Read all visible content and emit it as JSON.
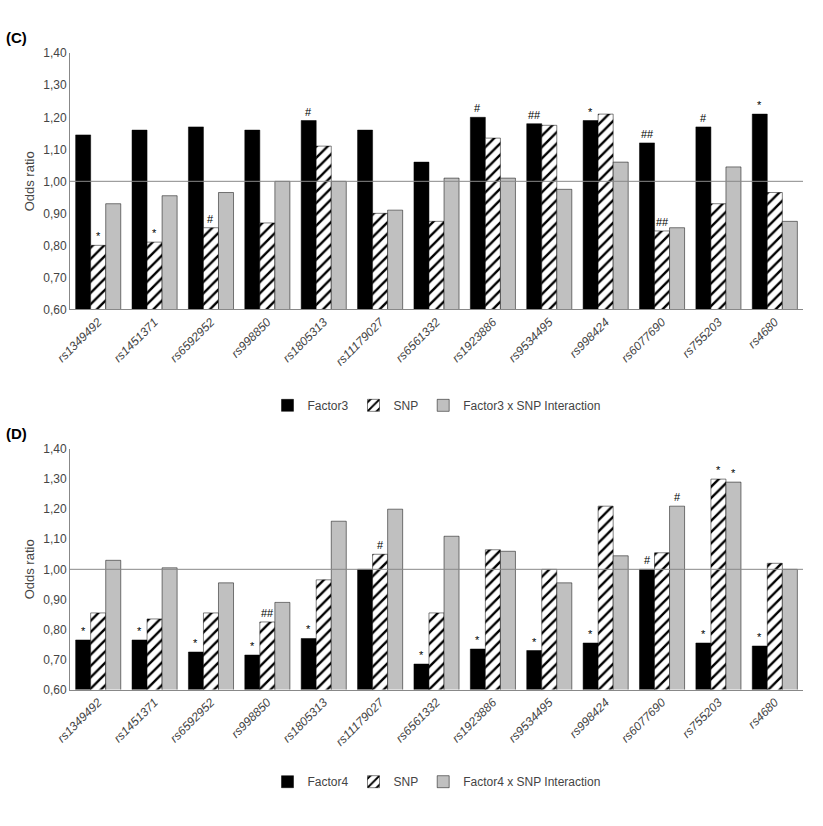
{
  "chart_data": [
    {
      "type": "bar",
      "title": "(C)",
      "categories": [
        "rs1349492",
        "rs1451371",
        "rs6592952",
        "rs998850",
        "rs1805313",
        "rs11179027",
        "rs6561332",
        "rs1923886",
        "rs9534495",
        "rs998424",
        "rs6077690",
        "rs755203",
        "rs4680"
      ],
      "series": [
        {
          "name": "Factor3",
          "color": "black",
          "values": [
            1.145,
            1.16,
            1.17,
            1.16,
            1.19,
            1.16,
            1.06,
            1.2,
            1.18,
            1.19,
            1.12,
            1.17,
            1.21
          ]
        },
        {
          "name": "SNP",
          "color": "white",
          "marker": "hatched",
          "values": [
            0.8,
            0.81,
            0.855,
            0.87,
            1.11,
            0.9,
            0.875,
            1.135,
            1.175,
            1.21,
            0.845,
            0.93,
            0.965
          ]
        },
        {
          "name": "Factor3 x SNP Interaction",
          "color": "#c0c0c0",
          "values": [
            0.93,
            0.955,
            0.965,
            1.0,
            1.0,
            0.91,
            1.01,
            1.01,
            0.975,
            1.06,
            0.855,
            1.045,
            0.875
          ]
        }
      ],
      "annotations": [
        {
          "category": "rs1805313",
          "series": "Factor3",
          "text": "#"
        },
        {
          "category": "rs1923886",
          "series": "Factor3",
          "text": "#"
        },
        {
          "category": "rs9534495",
          "series": "Factor3",
          "text": "##"
        },
        {
          "category": "rs998424",
          "series": "Factor3",
          "text": "*"
        },
        {
          "category": "rs6077690",
          "series": "Factor3",
          "text": "##"
        },
        {
          "category": "rs755203",
          "series": "Factor3",
          "text": "#"
        },
        {
          "category": "rs4680",
          "series": "Factor3",
          "text": "*"
        },
        {
          "category": "rs1349492",
          "series": "SNP",
          "text": "*"
        },
        {
          "category": "rs1451371",
          "series": "SNP",
          "text": "*"
        },
        {
          "category": "rs6592952",
          "series": "SNP",
          "text": "#"
        },
        {
          "category": "rs6077690",
          "series": "SNP",
          "text": "##"
        }
      ],
      "reference_line": 1.0,
      "ylabel": "Odds ratio",
      "ylim": [
        0.6,
        1.4
      ],
      "yticks": [
        {
          "value": 0.6,
          "label": "0,60"
        },
        {
          "value": 0.7,
          "label": "0,70"
        },
        {
          "value": 0.8,
          "label": "0,80"
        },
        {
          "value": 0.9,
          "label": "0,90"
        },
        {
          "value": 1.0,
          "label": "1,00"
        },
        {
          "value": 1.1,
          "label": "1,10"
        },
        {
          "value": 1.2,
          "label": "1,20"
        },
        {
          "value": 1.3,
          "label": "1,30"
        },
        {
          "value": 1.4,
          "label": "1,40"
        }
      ],
      "grid": false
    },
    {
      "type": "bar",
      "title": "(D)",
      "categories": [
        "rs1349492",
        "rs1451371",
        "rs6592952",
        "rs998850",
        "rs1805313",
        "rs11179027",
        "rs6561332",
        "rs1923886",
        "rs9534495",
        "rs998424",
        "rs6077690",
        "rs755203",
        "rs4680"
      ],
      "series": [
        {
          "name": "Factor4",
          "color": "black",
          "values": [
            0.765,
            0.765,
            0.725,
            0.715,
            0.77,
            1.0,
            0.685,
            0.735,
            0.73,
            0.755,
            1.0,
            0.755,
            0.745
          ]
        },
        {
          "name": "SNP",
          "color": "white",
          "marker": "hatched",
          "values": [
            0.855,
            0.835,
            0.855,
            0.825,
            0.965,
            1.05,
            0.855,
            1.065,
            1.0,
            1.21,
            1.055,
            1.3,
            1.02
          ]
        },
        {
          "name": "Factor4 x SNP Interaction",
          "color": "#c0c0c0",
          "values": [
            1.03,
            1.005,
            0.955,
            0.89,
            1.16,
            1.2,
            1.11,
            1.06,
            0.955,
            1.045,
            1.21,
            1.29,
            1.0
          ]
        }
      ],
      "annotations": [
        {
          "category": "rs1349492",
          "series": "Factor4",
          "text": "*"
        },
        {
          "category": "rs1451371",
          "series": "Factor4",
          "text": "*"
        },
        {
          "category": "rs6592952",
          "series": "Factor4",
          "text": "*"
        },
        {
          "category": "rs998850",
          "series": "Factor4",
          "text": "*"
        },
        {
          "category": "rs1805313",
          "series": "Factor4",
          "text": "*"
        },
        {
          "category": "rs6561332",
          "series": "Factor4",
          "text": "*"
        },
        {
          "category": "rs1923886",
          "series": "Factor4",
          "text": "*"
        },
        {
          "category": "rs9534495",
          "series": "Factor4",
          "text": "*"
        },
        {
          "category": "rs998424",
          "series": "Factor4",
          "text": "*"
        },
        {
          "category": "rs6077690",
          "series": "Factor4",
          "text": "#"
        },
        {
          "category": "rs755203",
          "series": "Factor4",
          "text": "*"
        },
        {
          "category": "rs4680",
          "series": "Factor4",
          "text": "*"
        },
        {
          "category": "rs998850",
          "series": "SNP",
          "text": "##"
        },
        {
          "category": "rs11179027",
          "series": "SNP",
          "text": "#"
        },
        {
          "category": "rs755203",
          "series": "SNP",
          "text": "*"
        },
        {
          "category": "rs6077690",
          "series": "Factor4 x SNP Interaction",
          "text": "#"
        },
        {
          "category": "rs755203",
          "series": "Factor4 x SNP Interaction",
          "text": "*"
        }
      ],
      "reference_line": 1.0,
      "ylabel": "Odds ratio",
      "ylim": [
        0.6,
        1.4
      ],
      "yticks": [
        {
          "value": 0.6,
          "label": "0,60"
        },
        {
          "value": 0.7,
          "label": "0,70"
        },
        {
          "value": 0.8,
          "label": "0,80"
        },
        {
          "value": 0.9,
          "label": "0,90"
        },
        {
          "value": 1.0,
          "label": "1,00"
        },
        {
          "value": 1.1,
          "label": "1,10"
        },
        {
          "value": 1.2,
          "label": "1,20"
        },
        {
          "value": 1.3,
          "label": "1,30"
        },
        {
          "value": 1.4,
          "label": "1,40"
        }
      ],
      "grid": false
    }
  ]
}
